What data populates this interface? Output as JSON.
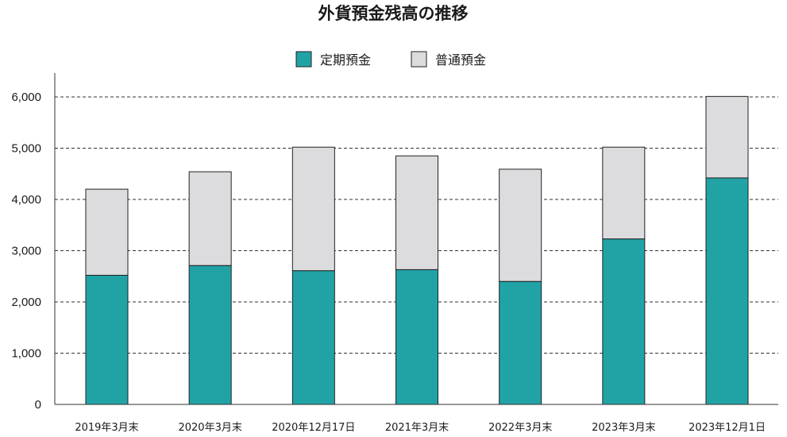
{
  "chart_data": {
    "type": "bar",
    "stacked": true,
    "title": "外貨預金残高の推移",
    "categories": [
      "2019年3月末",
      "2020年3月末",
      "2020年12月17日",
      "2021年3月末",
      "2022年3月末",
      "2023年3月末",
      "2023年12月1日"
    ],
    "series": [
      {
        "name": "定期預金",
        "color": "#21a3a6",
        "values": [
          2520,
          2710,
          2610,
          2630,
          2400,
          3230,
          4420
        ]
      },
      {
        "name": "普通預金",
        "color": "#dcdcde",
        "values": [
          1680,
          1830,
          2410,
          2220,
          2190,
          1790,
          1590
        ]
      }
    ],
    "yticks": [
      "0",
      "1,000",
      "2,000",
      "3,000",
      "4,000",
      "5,000",
      "6,000"
    ],
    "ylim": [
      0,
      6000
    ],
    "grid": true,
    "legend_position": "top-center",
    "xlabel": "",
    "ylabel": ""
  }
}
